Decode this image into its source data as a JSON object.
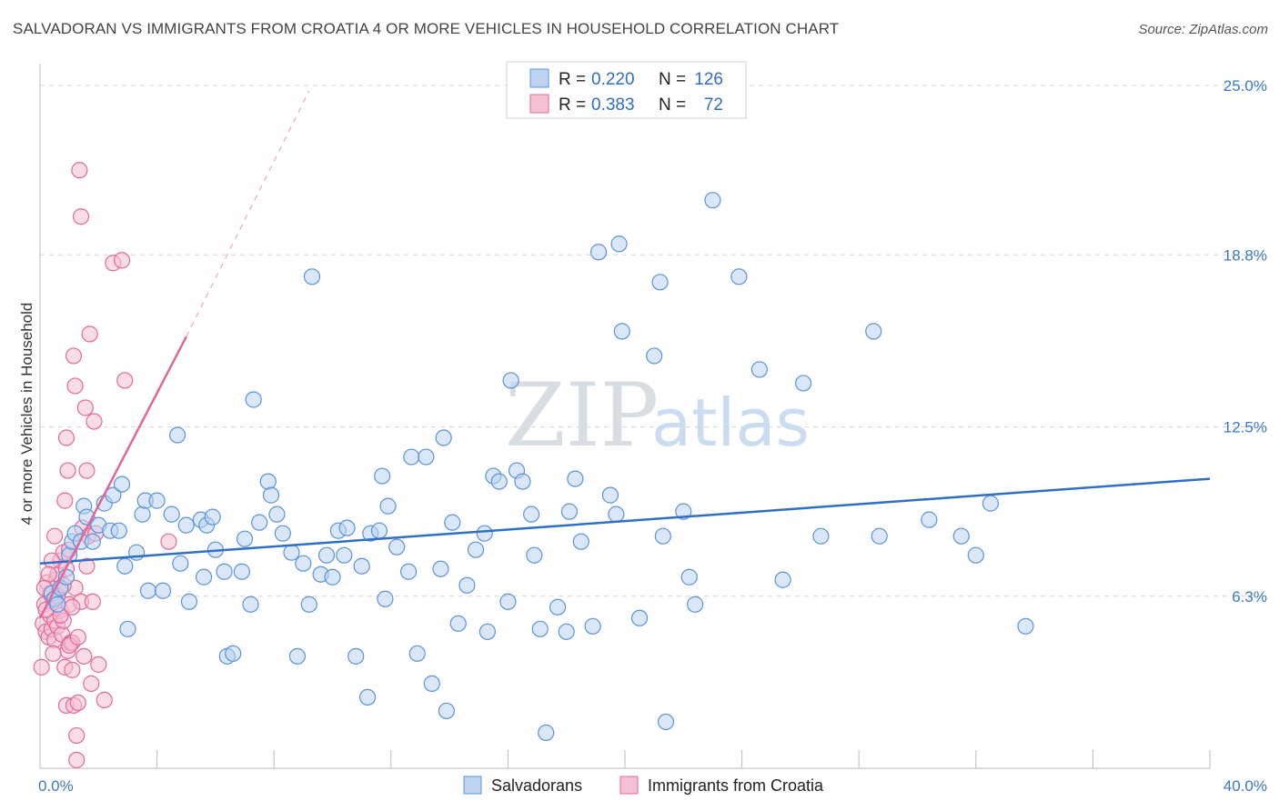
{
  "title": "SALVADORAN VS IMMIGRANTS FROM CROATIA 4 OR MORE VEHICLES IN HOUSEHOLD CORRELATION CHART",
  "source": "Source: ZipAtlas.com",
  "watermark": {
    "zip": "ZIP",
    "atlas": "atlas"
  },
  "colors": {
    "blue": "#5b93d8",
    "blue_fill": "#bcd4f2",
    "pink": "#e06a98",
    "pink_fill": "#f5c0d3",
    "trend_blue": "#2f6fc7",
    "trend_pink": "#e0679a",
    "grid": "#d6d6d6"
  },
  "legend": {
    "rows": [
      {
        "r_label": "R = ",
        "r_value": "0.220",
        "n_label": "N = ",
        "n_value": "126"
      },
      {
        "r_label": "R = ",
        "r_value": "0.383",
        "n_label": "N = ",
        "n_value": "72"
      }
    ]
  },
  "chart_data": {
    "type": "scatter",
    "title": "SALVADORAN VS IMMIGRANTS FROM CROATIA 4 OR MORE VEHICLES IN HOUSEHOLD CORRELATION CHART",
    "xlabel": "",
    "ylabel": "4 or more Vehicles in Household",
    "xlim": [
      0,
      40
    ],
    "ylim": [
      0,
      25.8
    ],
    "x_tick_labels": [
      "0.0%",
      "40.0%"
    ],
    "y_ticks": [
      6.3,
      12.5,
      18.8,
      25.0
    ],
    "y_tick_labels": [
      "6.3%",
      "12.5%",
      "18.8%",
      "25.0%"
    ],
    "grid": true,
    "legend_placement": "top-center",
    "series": [
      {
        "name": "Salvadorans",
        "trend": {
          "x": [
            0,
            40
          ],
          "y": [
            7.5,
            10.6
          ]
        },
        "points": [
          [
            0.4,
            6.4
          ],
          [
            0.5,
            6.2
          ],
          [
            0.6,
            6.0
          ],
          [
            0.7,
            6.6
          ],
          [
            0.9,
            7.0
          ],
          [
            1.0,
            7.8
          ],
          [
            1.1,
            8.3
          ],
          [
            1.2,
            8.6
          ],
          [
            1.4,
            8.3
          ],
          [
            1.5,
            9.6
          ],
          [
            1.6,
            9.2
          ],
          [
            1.8,
            8.3
          ],
          [
            2.0,
            8.9
          ],
          [
            2.2,
            9.7
          ],
          [
            2.4,
            8.7
          ],
          [
            2.5,
            10.0
          ],
          [
            2.7,
            8.7
          ],
          [
            2.8,
            10.4
          ],
          [
            2.9,
            7.4
          ],
          [
            3.0,
            5.1
          ],
          [
            3.3,
            7.9
          ],
          [
            3.5,
            9.3
          ],
          [
            3.6,
            9.8
          ],
          [
            3.7,
            6.5
          ],
          [
            4.0,
            9.8
          ],
          [
            4.2,
            6.5
          ],
          [
            4.5,
            9.3
          ],
          [
            4.7,
            12.2
          ],
          [
            4.8,
            7.5
          ],
          [
            5.0,
            8.9
          ],
          [
            5.1,
            6.1
          ],
          [
            5.5,
            9.1
          ],
          [
            5.6,
            7.0
          ],
          [
            5.7,
            8.9
          ],
          [
            5.9,
            9.2
          ],
          [
            6.0,
            8.0
          ],
          [
            6.3,
            7.2
          ],
          [
            6.4,
            4.1
          ],
          [
            6.6,
            4.2
          ],
          [
            6.9,
            7.2
          ],
          [
            7.0,
            8.4
          ],
          [
            7.2,
            6.0
          ],
          [
            7.3,
            13.5
          ],
          [
            7.5,
            9.0
          ],
          [
            7.8,
            10.5
          ],
          [
            7.9,
            10.0
          ],
          [
            8.1,
            9.3
          ],
          [
            8.3,
            8.6
          ],
          [
            8.6,
            7.9
          ],
          [
            8.8,
            4.1
          ],
          [
            9.0,
            7.5
          ],
          [
            9.2,
            6.0
          ],
          [
            9.3,
            18.0
          ],
          [
            9.6,
            7.1
          ],
          [
            9.8,
            7.8
          ],
          [
            10.0,
            7.0
          ],
          [
            10.2,
            8.7
          ],
          [
            10.4,
            7.8
          ],
          [
            10.5,
            8.8
          ],
          [
            10.8,
            4.1
          ],
          [
            11.0,
            7.4
          ],
          [
            11.2,
            2.6
          ],
          [
            11.3,
            8.6
          ],
          [
            11.6,
            8.7
          ],
          [
            11.7,
            10.7
          ],
          [
            11.8,
            6.2
          ],
          [
            11.9,
            9.6
          ],
          [
            12.2,
            8.1
          ],
          [
            12.6,
            7.2
          ],
          [
            12.7,
            11.4
          ],
          [
            12.9,
            4.2
          ],
          [
            13.2,
            11.4
          ],
          [
            13.4,
            3.1
          ],
          [
            13.7,
            7.3
          ],
          [
            13.9,
            2.1
          ],
          [
            13.8,
            12.1
          ],
          [
            14.1,
            9.0
          ],
          [
            14.3,
            5.3
          ],
          [
            14.6,
            6.7
          ],
          [
            14.9,
            8.0
          ],
          [
            15.2,
            8.6
          ],
          [
            15.3,
            5.0
          ],
          [
            15.5,
            10.7
          ],
          [
            15.7,
            10.5
          ],
          [
            16.0,
            6.1
          ],
          [
            16.1,
            14.2
          ],
          [
            16.3,
            10.9
          ],
          [
            16.5,
            10.5
          ],
          [
            16.8,
            9.3
          ],
          [
            16.9,
            7.8
          ],
          [
            17.1,
            5.1
          ],
          [
            17.3,
            1.3
          ],
          [
            17.7,
            5.9
          ],
          [
            18.0,
            5.0
          ],
          [
            18.1,
            9.4
          ],
          [
            18.3,
            10.6
          ],
          [
            18.5,
            8.3
          ],
          [
            18.9,
            5.2
          ],
          [
            19.1,
            18.9
          ],
          [
            19.5,
            10.0
          ],
          [
            19.7,
            9.3
          ],
          [
            19.8,
            19.2
          ],
          [
            19.9,
            16.0
          ],
          [
            20.5,
            5.5
          ],
          [
            21.0,
            15.1
          ],
          [
            21.2,
            17.8
          ],
          [
            21.3,
            8.5
          ],
          [
            21.4,
            1.7
          ],
          [
            22.0,
            9.4
          ],
          [
            22.2,
            7.0
          ],
          [
            22.4,
            6.0
          ],
          [
            23.0,
            20.8
          ],
          [
            23.9,
            18.0
          ],
          [
            24.6,
            14.6
          ],
          [
            25.4,
            6.9
          ],
          [
            26.1,
            14.1
          ],
          [
            26.7,
            8.5
          ],
          [
            28.5,
            16.0
          ],
          [
            28.7,
            8.5
          ],
          [
            30.4,
            9.1
          ],
          [
            31.5,
            8.5
          ],
          [
            32.0,
            7.8
          ],
          [
            32.5,
            9.7
          ],
          [
            33.7,
            5.2
          ]
        ]
      },
      {
        "name": "Immigrants from Croatia",
        "trend": {
          "x": [
            0,
            5.0
          ],
          "y": [
            5.5,
            15.8
          ]
        },
        "trend_dashed": {
          "x": [
            5.0,
            9.2
          ],
          "y": [
            15.8,
            24.8
          ]
        },
        "points": [
          [
            0.05,
            3.7
          ],
          [
            0.1,
            5.3
          ],
          [
            0.15,
            6.0
          ],
          [
            0.2,
            5.0
          ],
          [
            0.25,
            6.8
          ],
          [
            0.3,
            4.8
          ],
          [
            0.35,
            5.6
          ],
          [
            0.35,
            6.4
          ],
          [
            0.4,
            5.1
          ],
          [
            0.45,
            6.2
          ],
          [
            0.5,
            5.4
          ],
          [
            0.5,
            4.7
          ],
          [
            0.55,
            6.9
          ],
          [
            0.6,
            5.2
          ],
          [
            0.6,
            7.1
          ],
          [
            0.65,
            6.5
          ],
          [
            0.7,
            5.8
          ],
          [
            0.7,
            7.6
          ],
          [
            0.75,
            4.9
          ],
          [
            0.8,
            5.4
          ],
          [
            0.8,
            7.9
          ],
          [
            0.85,
            9.8
          ],
          [
            0.85,
            3.7
          ],
          [
            0.9,
            12.1
          ],
          [
            0.9,
            2.3
          ],
          [
            0.95,
            4.3
          ],
          [
            0.95,
            10.9
          ],
          [
            1.0,
            8.0
          ],
          [
            1.0,
            6.0
          ],
          [
            1.05,
            4.6
          ],
          [
            1.1,
            4.6
          ],
          [
            1.1,
            3.6
          ],
          [
            1.15,
            15.1
          ],
          [
            1.15,
            2.3
          ],
          [
            1.2,
            14.0
          ],
          [
            1.2,
            6.6
          ],
          [
            1.25,
            1.2
          ],
          [
            1.25,
            0.3
          ],
          [
            1.3,
            2.4
          ],
          [
            1.35,
            21.9
          ],
          [
            1.4,
            20.2
          ],
          [
            1.4,
            6.1
          ],
          [
            1.45,
            8.8
          ],
          [
            1.5,
            4.1
          ],
          [
            1.55,
            13.2
          ],
          [
            1.6,
            10.9
          ],
          [
            1.6,
            7.4
          ],
          [
            1.65,
            8.5
          ],
          [
            1.7,
            15.9
          ],
          [
            1.75,
            3.1
          ],
          [
            1.8,
            6.1
          ],
          [
            1.85,
            12.7
          ],
          [
            1.9,
            8.6
          ],
          [
            2.0,
            3.8
          ],
          [
            2.2,
            2.5
          ],
          [
            2.5,
            18.5
          ],
          [
            2.8,
            18.6
          ],
          [
            2.9,
            14.2
          ],
          [
            4.4,
            8.3
          ],
          [
            0.4,
            7.6
          ],
          [
            0.5,
            8.5
          ],
          [
            0.6,
            6.3
          ],
          [
            0.7,
            5.6
          ],
          [
            0.8,
            6.7
          ],
          [
            0.9,
            7.3
          ],
          [
            1.0,
            4.5
          ],
          [
            1.1,
            5.9
          ],
          [
            1.3,
            4.8
          ],
          [
            0.3,
            7.1
          ],
          [
            0.2,
            5.8
          ],
          [
            0.15,
            6.6
          ],
          [
            0.45,
            4.2
          ]
        ]
      }
    ]
  },
  "bottom_legend": [
    {
      "label": "Salvadorans"
    },
    {
      "label": "Immigrants from Croatia"
    }
  ]
}
